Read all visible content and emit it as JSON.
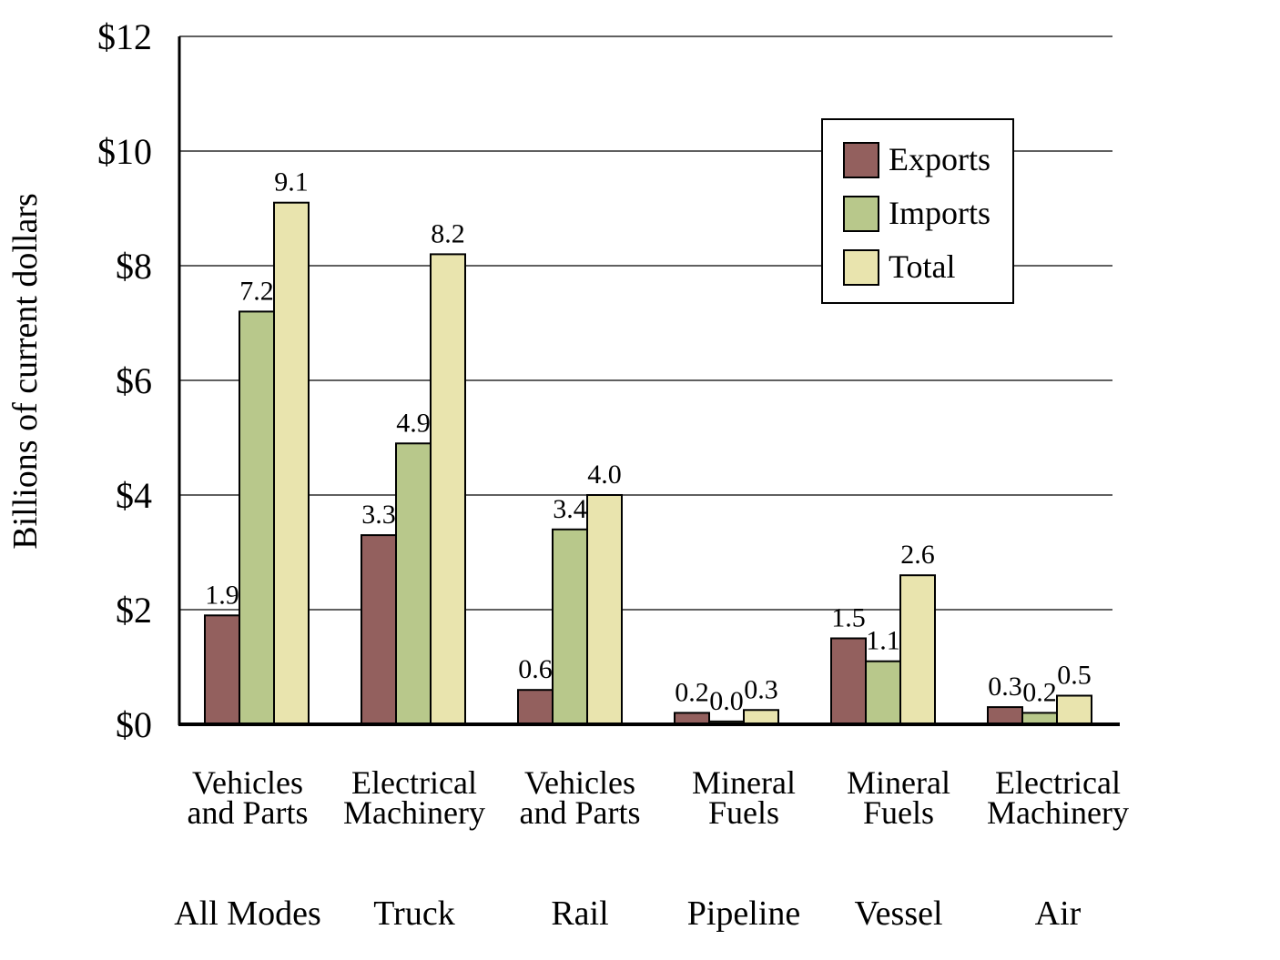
{
  "chart_data": {
    "type": "bar",
    "ylabel": "Billions of current dollars",
    "ylim": [
      0,
      12
    ],
    "yticks": [
      0,
      2,
      4,
      6,
      8,
      10,
      12
    ],
    "ytick_labels": [
      "$0",
      "$2",
      "$4",
      "$6",
      "$8",
      "$10",
      "$12"
    ],
    "grid": true,
    "legend_position": "top-right",
    "categories": [
      {
        "mode": "All Modes",
        "commodity": [
          "Vehicles",
          "and Parts"
        ]
      },
      {
        "mode": "Truck",
        "commodity": [
          "Electrical",
          "Machinery"
        ]
      },
      {
        "mode": "Rail",
        "commodity": [
          "Vehicles",
          "and Parts"
        ]
      },
      {
        "mode": "Pipeline",
        "commodity": [
          "Mineral",
          "Fuels"
        ]
      },
      {
        "mode": "Vessel",
        "commodity": [
          "Mineral",
          "Fuels"
        ]
      },
      {
        "mode": "Air",
        "commodity": [
          "Electrical",
          "Machinery"
        ]
      }
    ],
    "series": [
      {
        "name": "Exports",
        "color": "#93605e",
        "values": [
          1.9,
          3.3,
          0.6,
          0.2,
          1.5,
          0.3
        ],
        "labels": [
          "1.9",
          "3.3",
          "0.6",
          "0.2",
          "1.5",
          "0.3"
        ]
      },
      {
        "name": "Imports",
        "color": "#b8c88b",
        "values": [
          7.2,
          4.9,
          3.4,
          0.05,
          1.1,
          0.2
        ],
        "labels": [
          "7.2",
          "4.9",
          "3.4",
          "0.0",
          "1.1",
          "0.2"
        ]
      },
      {
        "name": "Total",
        "color": "#e9e4ae",
        "values": [
          9.1,
          8.2,
          4.0,
          0.25,
          2.6,
          0.5
        ],
        "labels": [
          "9.1",
          "8.2",
          "4.0",
          "0.3",
          "2.6",
          "0.5"
        ]
      }
    ]
  }
}
